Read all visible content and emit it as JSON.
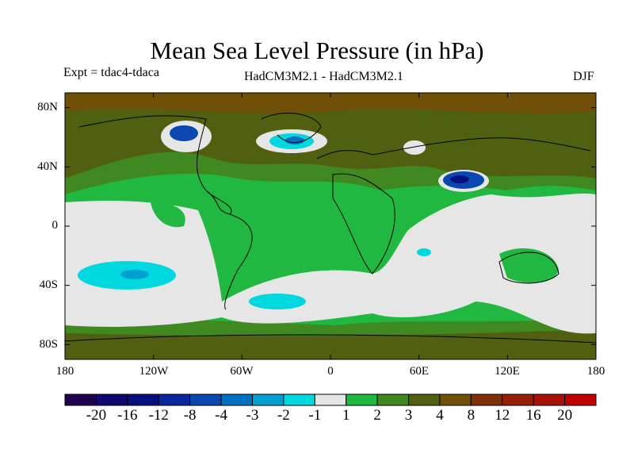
{
  "header": {
    "title": "Mean Sea Level Pressure (in hPa)",
    "expt": "Expt = tdac4-tdaca",
    "model": "HadCM3M2.1 - HadCM3M2.1",
    "season": "DJF"
  },
  "chart_data": {
    "type": "heatmap",
    "title": "Mean Sea Level Pressure (in hPa)",
    "x_ticks": [
      "180",
      "120W",
      "60W",
      "0",
      "60E",
      "120E",
      "180"
    ],
    "y_ticks": [
      "80N",
      "40N",
      "0",
      "40S",
      "80S"
    ],
    "xlim": [
      -180,
      180
    ],
    "ylim": [
      -90,
      90
    ],
    "colorbar": {
      "labels": [
        "-20",
        "-16",
        "-12",
        "-8",
        "-4",
        "-3",
        "-2",
        "-1",
        "1",
        "2",
        "3",
        "4",
        "8",
        "12",
        "16",
        "20"
      ],
      "colors": [
        "#200050",
        "#100870",
        "#081080",
        "#0828a0",
        "#0848b0",
        "#0070c0",
        "#00a0d0",
        "#00d8e0",
        "#e6e6e6",
        "#20b840",
        "#408820",
        "#506010",
        "#705008",
        "#803008",
        "#982008",
        "#a81008",
        "#c00000"
      ]
    }
  }
}
